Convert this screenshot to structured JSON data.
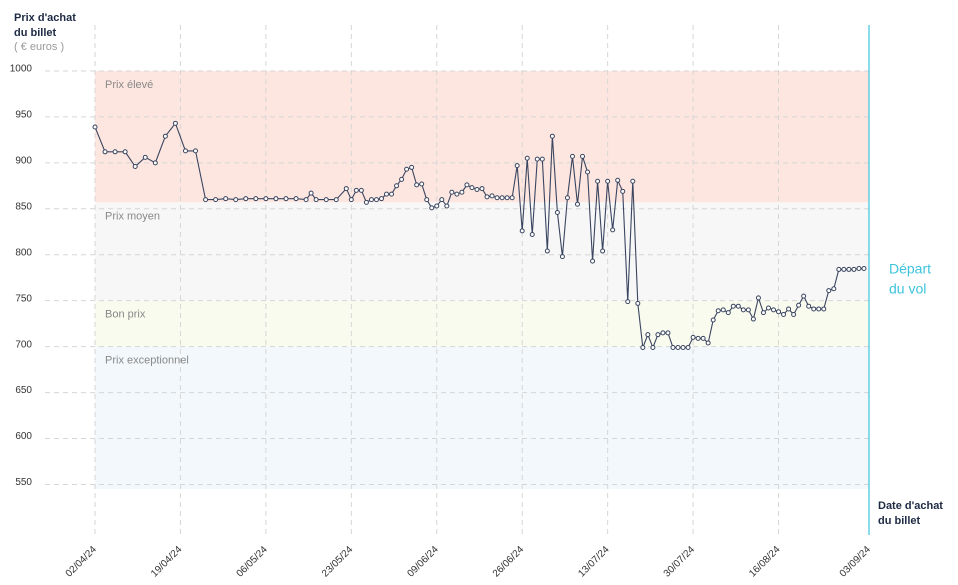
{
  "chart_data": {
    "type": "line",
    "y_title": [
      "Prix d'achat",
      "du billet"
    ],
    "y_unit": "( € euros )",
    "x_title": [
      "Date d'achat",
      "du billet"
    ],
    "departure": {
      "date": "03/09/24",
      "lines": [
        "Départ",
        "du vol"
      ],
      "color": "#3cc4dc"
    },
    "bands": [
      {
        "label": "Prix élevé",
        "from": 857,
        "to": 1000,
        "color": "#fde6df"
      },
      {
        "label": "Prix moyen",
        "from": 750,
        "to": 857,
        "color": "#f7f7f7"
      },
      {
        "label": "Bon prix",
        "from": 700,
        "to": 750,
        "color": "#fafbef"
      },
      {
        "label": "Prix exceptionnel",
        "from": 545,
        "to": 700,
        "color": "#f2f8fc"
      }
    ],
    "ylim": [
      495,
      1050
    ],
    "yticks": [
      550,
      600,
      650,
      700,
      750,
      800,
      850,
      900,
      950,
      1000
    ],
    "xlim": [
      "02/04/24",
      "03/09/24"
    ],
    "xticks": [
      "02/04/24",
      "19/04/24",
      "06/05/24",
      "23/05/24",
      "09/06/24",
      "26/06/24",
      "13/07/24",
      "30/07/24",
      "16/08/24",
      "03/09/24"
    ],
    "grid": true,
    "series": [
      {
        "color": "#3a4560",
        "x": [
          "02/04/24",
          "04/04/24",
          "06/04/24",
          "08/04/24",
          "10/04/24",
          "12/04/24",
          "14/04/24",
          "16/04/24",
          "18/04/24",
          "20/04/24",
          "22/04/24",
          "24/04/24",
          "26/04/24",
          "28/04/24",
          "30/04/24",
          "02/05/24",
          "04/05/24",
          "06/05/24",
          "08/05/24",
          "10/05/24",
          "12/05/24",
          "14/05/24",
          "15/05/24",
          "16/05/24",
          "18/05/24",
          "20/05/24",
          "22/05/24",
          "23/05/24",
          "24/05/24",
          "25/05/24",
          "26/05/24",
          "27/05/24",
          "28/05/24",
          "29/05/24",
          "30/05/24",
          "31/05/24",
          "01/06/24",
          "02/06/24",
          "03/06/24",
          "04/06/24",
          "05/06/24",
          "06/06/24",
          "07/06/24",
          "08/06/24",
          "09/06/24",
          "10/06/24",
          "11/06/24",
          "12/06/24",
          "13/06/24",
          "14/06/24",
          "15/06/24",
          "16/06/24",
          "17/06/24",
          "18/06/24",
          "19/06/24",
          "20/06/24",
          "21/06/24",
          "22/06/24",
          "23/06/24",
          "24/06/24",
          "25/06/24",
          "26/06/24",
          "27/06/24",
          "28/06/24",
          "29/06/24",
          "30/06/24",
          "01/07/24",
          "02/07/24",
          "03/07/24",
          "04/07/24",
          "05/07/24",
          "06/07/24",
          "07/07/24",
          "08/07/24",
          "09/07/24",
          "10/07/24",
          "11/07/24",
          "12/07/24",
          "13/07/24",
          "14/07/24",
          "15/07/24",
          "16/07/24",
          "17/07/24",
          "18/07/24",
          "19/07/24",
          "20/07/24",
          "21/07/24",
          "22/07/24",
          "23/07/24",
          "24/07/24",
          "25/07/24",
          "26/07/24",
          "27/07/24",
          "28/07/24",
          "29/07/24",
          "30/07/24",
          "31/07/24",
          "01/08/24",
          "02/08/24",
          "03/08/24",
          "04/08/24",
          "05/08/24",
          "06/08/24",
          "07/08/24",
          "08/08/24",
          "09/08/24",
          "10/08/24",
          "11/08/24",
          "12/08/24",
          "13/08/24",
          "14/08/24",
          "15/08/24",
          "16/08/24",
          "17/08/24",
          "18/08/24",
          "19/08/24",
          "20/08/24",
          "21/08/24",
          "22/08/24",
          "23/08/24",
          "24/08/24",
          "25/08/24",
          "26/08/24",
          "27/08/24",
          "28/08/24",
          "29/08/24",
          "30/08/24",
          "31/08/24",
          "01/09/24",
          "02/09/24"
        ],
        "values": [
          939,
          912,
          912,
          912,
          896,
          906,
          900,
          929,
          943,
          913,
          913,
          860,
          860,
          861,
          860,
          861,
          861,
          861,
          861,
          861,
          861,
          860,
          867,
          860,
          860,
          860,
          872,
          860,
          870,
          870,
          857,
          860,
          860,
          861,
          866,
          866,
          875,
          882,
          893,
          895,
          876,
          877,
          860,
          851,
          853,
          860,
          853,
          868,
          866,
          868,
          876,
          873,
          871,
          872,
          863,
          864,
          862,
          862,
          862,
          862,
          897,
          826,
          905,
          822,
          904,
          904,
          804,
          929,
          846,
          798,
          862,
          907,
          855,
          907,
          890,
          793,
          880,
          804,
          880,
          827,
          881,
          869,
          749,
          880,
          747,
          699,
          713,
          699,
          713,
          715,
          715,
          699,
          699,
          699,
          699,
          710,
          709,
          709,
          704,
          729,
          739,
          740,
          737,
          744,
          744,
          740,
          740,
          730,
          753,
          737,
          742,
          740,
          738,
          735,
          741,
          735,
          745,
          755,
          744,
          741,
          741,
          741,
          761,
          763,
          784,
          784,
          784,
          784,
          785,
          785
        ]
      }
    ]
  }
}
